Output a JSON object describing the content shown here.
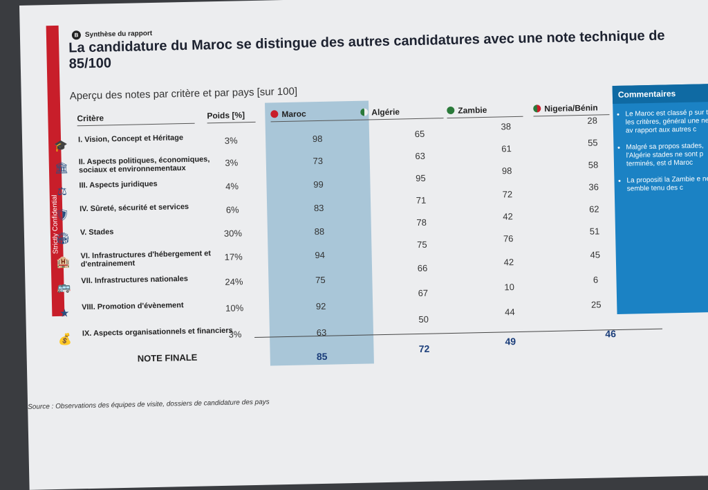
{
  "section": {
    "num": "B",
    "label": "Synthèse du rapport"
  },
  "title": "La candidature du Maroc se distingue des autres candidatures avec une note technique de 85/100",
  "subtitle": "Aperçu des notes par critère et par pays [sur 100]",
  "side_label": "Strictly Confidential",
  "headers": {
    "critere": "Critère",
    "poids": "Poids [%]",
    "maroc": "Maroc",
    "algerie": "Algérie",
    "zambie": "Zambie",
    "nigeria": "Nigeria/Bénin",
    "commentaires": "Commentaires"
  },
  "rows": [
    {
      "label": "I. Vision, Concept et Héritage",
      "icon": "🎓",
      "poids": "3%",
      "maroc": "98",
      "algerie": "65",
      "zambie": "38",
      "nigeria": "28"
    },
    {
      "label": "II. Aspects politiques, économiques, sociaux et environnementaux",
      "icon": "🏛",
      "poids": "3%",
      "maroc": "73",
      "algerie": "63",
      "zambie": "61",
      "nigeria": "55"
    },
    {
      "label": "III. Aspects juridiques",
      "icon": "⚖",
      "poids": "4%",
      "maroc": "99",
      "algerie": "95",
      "zambie": "98",
      "nigeria": "58"
    },
    {
      "label": "IV. Sûreté, sécurité et services",
      "icon": "🛡",
      "poids": "6%",
      "maroc": "83",
      "algerie": "71",
      "zambie": "72",
      "nigeria": "36"
    },
    {
      "label": "V. Stades",
      "icon": "🏟",
      "poids": "30%",
      "maroc": "88",
      "algerie": "78",
      "zambie": "42",
      "nigeria": "62"
    },
    {
      "label": "VI. Infrastructures d'hébergement et d'entrainement",
      "icon": "🏨",
      "poids": "17%",
      "maroc": "94",
      "algerie": "75",
      "zambie": "76",
      "nigeria": "51"
    },
    {
      "label": "VII. Infrastructures nationales",
      "icon": "🚌",
      "poids": "24%",
      "maroc": "75",
      "algerie": "66",
      "zambie": "42",
      "nigeria": "45"
    },
    {
      "label": "VIII. Promotion d'évènement",
      "icon": "★",
      "poids": "10%",
      "maroc": "92",
      "algerie": "67",
      "zambie": "10",
      "nigeria": "6"
    },
    {
      "label": "IX. Aspects organisationnels et financiers",
      "icon": "💰",
      "poids": "3%",
      "maroc": "63",
      "algerie": "50",
      "zambie": "44",
      "nigeria": "25"
    }
  ],
  "final": {
    "label": "NOTE FINALE",
    "maroc": "85",
    "algerie": "72",
    "zambie": "49",
    "nigeria": "46"
  },
  "comments": [
    "Le Maroc est classé p sur tous les critères, général une nette av rapport aux autres c",
    "Malgré sa propos stades, l'Algérie stades ne sont p terminés, est d Maroc",
    "La propositi la Zambie e ne semble tenu des c"
  ],
  "source": "Source : Observations des équipes de visite, dossiers de candidature des pays",
  "colors": {
    "red": "#c81e2a",
    "maroc_col": "#a9c6d8",
    "comments": "#1b82c4"
  }
}
